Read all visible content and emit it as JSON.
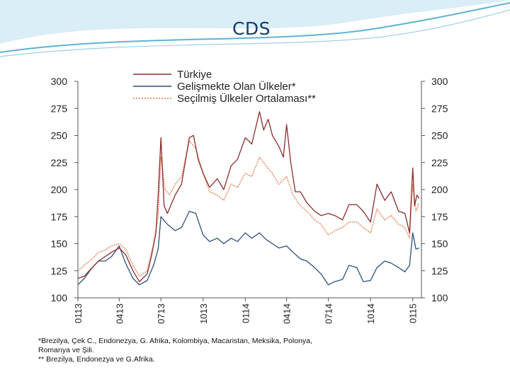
{
  "slide": {
    "title": "CDS",
    "footnotes": [
      "*Brezilya, Çek C., Endonezya, G. Afrika, Kolombiya, Macaristan, Meksika, Polonya,",
      "Romanya ve Şili.",
      "** Brezilya, Endonezya ve G.Afrika."
    ]
  },
  "colors": {
    "turkiye": "#8b2d2d",
    "gelismekte": "#2f4f7a",
    "secilmis": "#e07a4a",
    "axis": "#555555",
    "title": "#143c6e",
    "swoosh": "#5fb2d6"
  },
  "chart_data": {
    "type": "line",
    "title": "",
    "ylim": [
      100,
      300
    ],
    "yticks": [
      "100",
      "125",
      "150",
      "175",
      "200",
      "225",
      "250",
      "275",
      "300"
    ],
    "right_axis_mirrors_left": true,
    "grid": false,
    "legend_position": "top-center",
    "x_range": [
      "2013-01",
      "2015-01"
    ],
    "xticks": [
      {
        "label": "0113",
        "date": "2013-01"
      },
      {
        "label": "0413",
        "date": "2013-04"
      },
      {
        "label": "0713",
        "date": "2013-07"
      },
      {
        "label": "1013",
        "date": "2013-10"
      },
      {
        "label": "0114",
        "date": "2014-01"
      },
      {
        "label": "0414",
        "date": "2014-04"
      },
      {
        "label": "0714",
        "date": "2014-07"
      },
      {
        "label": "1014",
        "date": "2014-10"
      },
      {
        "label": "0115",
        "date": "2015-01"
      }
    ],
    "series": [
      {
        "name": "Türkiye",
        "key": "turkiye",
        "style": "solid",
        "points": [
          [
            "2013-01-01",
            118
          ],
          [
            "2013-01-15",
            120
          ],
          [
            "2013-02-01",
            128
          ],
          [
            "2013-02-15",
            134
          ],
          [
            "2013-03-01",
            138
          ],
          [
            "2013-03-15",
            142
          ],
          [
            "2013-04-01",
            146
          ],
          [
            "2013-04-15",
            140
          ],
          [
            "2013-05-01",
            125
          ],
          [
            "2013-05-15",
            115
          ],
          [
            "2013-06-01",
            122
          ],
          [
            "2013-06-10",
            138
          ],
          [
            "2013-06-20",
            160
          ],
          [
            "2013-06-25",
            195
          ],
          [
            "2013-07-01",
            248
          ],
          [
            "2013-07-08",
            185
          ],
          [
            "2013-07-15",
            178
          ],
          [
            "2013-08-01",
            195
          ],
          [
            "2013-08-15",
            205
          ],
          [
            "2013-09-01",
            248
          ],
          [
            "2013-09-10",
            250
          ],
          [
            "2013-09-20",
            228
          ],
          [
            "2013-10-01",
            215
          ],
          [
            "2013-10-15",
            202
          ],
          [
            "2013-11-01",
            210
          ],
          [
            "2013-11-15",
            200
          ],
          [
            "2013-12-01",
            222
          ],
          [
            "2013-12-15",
            228
          ],
          [
            "2014-01-01",
            248
          ],
          [
            "2014-01-15",
            242
          ],
          [
            "2014-02-01",
            272
          ],
          [
            "2014-02-10",
            255
          ],
          [
            "2014-02-20",
            265
          ],
          [
            "2014-03-01",
            250
          ],
          [
            "2014-03-15",
            240
          ],
          [
            "2014-03-25",
            230
          ],
          [
            "2014-04-01",
            260
          ],
          [
            "2014-04-10",
            225
          ],
          [
            "2014-04-20",
            198
          ],
          [
            "2014-05-01",
            198
          ],
          [
            "2014-05-15",
            188
          ],
          [
            "2014-06-01",
            180
          ],
          [
            "2014-06-15",
            176
          ],
          [
            "2014-07-01",
            178
          ],
          [
            "2014-07-15",
            176
          ],
          [
            "2014-08-01",
            172
          ],
          [
            "2014-08-15",
            186
          ],
          [
            "2014-09-01",
            186
          ],
          [
            "2014-09-15",
            180
          ],
          [
            "2014-10-01",
            170
          ],
          [
            "2014-10-15",
            205
          ],
          [
            "2014-11-01",
            190
          ],
          [
            "2014-11-15",
            198
          ],
          [
            "2014-12-01",
            180
          ],
          [
            "2014-12-15",
            178
          ],
          [
            "2014-12-25",
            160
          ],
          [
            "2015-01-01",
            220
          ],
          [
            "2015-01-05",
            185
          ],
          [
            "2015-01-10",
            195
          ],
          [
            "2015-01-15",
            192
          ]
        ]
      },
      {
        "name": "Gelişmekte Olan Ülkeler*",
        "key": "gelismekte",
        "style": "solid",
        "points": [
          [
            "2013-01-01",
            112
          ],
          [
            "2013-01-15",
            118
          ],
          [
            "2013-02-01",
            128
          ],
          [
            "2013-02-15",
            134
          ],
          [
            "2013-03-01",
            134
          ],
          [
            "2013-03-15",
            138
          ],
          [
            "2013-04-01",
            148
          ],
          [
            "2013-04-15",
            132
          ],
          [
            "2013-05-01",
            118
          ],
          [
            "2013-05-15",
            112
          ],
          [
            "2013-06-01",
            116
          ],
          [
            "2013-06-15",
            130
          ],
          [
            "2013-06-25",
            145
          ],
          [
            "2013-07-01",
            175
          ],
          [
            "2013-07-15",
            168
          ],
          [
            "2013-08-01",
            162
          ],
          [
            "2013-08-15",
            165
          ],
          [
            "2013-09-01",
            180
          ],
          [
            "2013-09-15",
            178
          ],
          [
            "2013-10-01",
            158
          ],
          [
            "2013-10-15",
            152
          ],
          [
            "2013-11-01",
            155
          ],
          [
            "2013-11-15",
            150
          ],
          [
            "2013-12-01",
            155
          ],
          [
            "2013-12-15",
            152
          ],
          [
            "2014-01-01",
            160
          ],
          [
            "2014-01-15",
            155
          ],
          [
            "2014-02-01",
            160
          ],
          [
            "2014-02-15",
            154
          ],
          [
            "2014-03-01",
            150
          ],
          [
            "2014-03-15",
            146
          ],
          [
            "2014-04-01",
            148
          ],
          [
            "2014-04-15",
            142
          ],
          [
            "2014-05-01",
            136
          ],
          [
            "2014-05-15",
            134
          ],
          [
            "2014-06-01",
            128
          ],
          [
            "2014-06-15",
            122
          ],
          [
            "2014-07-01",
            112
          ],
          [
            "2014-07-15",
            115
          ],
          [
            "2014-08-01",
            117
          ],
          [
            "2014-08-15",
            130
          ],
          [
            "2014-09-01",
            128
          ],
          [
            "2014-09-15",
            115
          ],
          [
            "2014-10-01",
            116
          ],
          [
            "2014-10-15",
            128
          ],
          [
            "2014-11-01",
            134
          ],
          [
            "2014-11-15",
            132
          ],
          [
            "2014-12-01",
            128
          ],
          [
            "2014-12-15",
            124
          ],
          [
            "2014-12-25",
            130
          ],
          [
            "2015-01-01",
            160
          ],
          [
            "2015-01-08",
            145
          ],
          [
            "2015-01-15",
            146
          ]
        ]
      },
      {
        "name": "Seçilmiş Ülkeler Ortalaması**",
        "key": "secilmis",
        "style": "dotted",
        "points": [
          [
            "2013-01-01",
            125
          ],
          [
            "2013-01-15",
            130
          ],
          [
            "2013-02-01",
            136
          ],
          [
            "2013-02-15",
            142
          ],
          [
            "2013-03-01",
            144
          ],
          [
            "2013-03-15",
            148
          ],
          [
            "2013-04-01",
            150
          ],
          [
            "2013-04-15",
            145
          ],
          [
            "2013-05-01",
            130
          ],
          [
            "2013-05-15",
            120
          ],
          [
            "2013-06-01",
            125
          ],
          [
            "2013-06-15",
            150
          ],
          [
            "2013-06-25",
            175
          ],
          [
            "2013-07-01",
            230
          ],
          [
            "2013-07-10",
            200
          ],
          [
            "2013-07-20",
            195
          ],
          [
            "2013-08-01",
            205
          ],
          [
            "2013-08-15",
            212
          ],
          [
            "2013-09-01",
            245
          ],
          [
            "2013-09-15",
            238
          ],
          [
            "2013-10-01",
            215
          ],
          [
            "2013-10-15",
            198
          ],
          [
            "2013-11-01",
            195
          ],
          [
            "2013-11-15",
            190
          ],
          [
            "2013-12-01",
            205
          ],
          [
            "2013-12-15",
            202
          ],
          [
            "2014-01-01",
            215
          ],
          [
            "2014-01-15",
            212
          ],
          [
            "2014-02-01",
            230
          ],
          [
            "2014-02-15",
            222
          ],
          [
            "2014-03-01",
            215
          ],
          [
            "2014-03-15",
            205
          ],
          [
            "2014-04-01",
            212
          ],
          [
            "2014-04-15",
            195
          ],
          [
            "2014-05-01",
            185
          ],
          [
            "2014-05-15",
            180
          ],
          [
            "2014-06-01",
            172
          ],
          [
            "2014-06-15",
            168
          ],
          [
            "2014-07-01",
            158
          ],
          [
            "2014-07-15",
            162
          ],
          [
            "2014-08-01",
            165
          ],
          [
            "2014-08-15",
            170
          ],
          [
            "2014-09-01",
            170
          ],
          [
            "2014-09-15",
            165
          ],
          [
            "2014-10-01",
            160
          ],
          [
            "2014-10-15",
            182
          ],
          [
            "2014-11-01",
            172
          ],
          [
            "2014-11-15",
            176
          ],
          [
            "2014-12-01",
            168
          ],
          [
            "2014-12-15",
            165
          ],
          [
            "2014-12-25",
            155
          ],
          [
            "2015-01-01",
            205
          ],
          [
            "2015-01-08",
            180
          ],
          [
            "2015-01-15",
            188
          ]
        ]
      }
    ]
  }
}
